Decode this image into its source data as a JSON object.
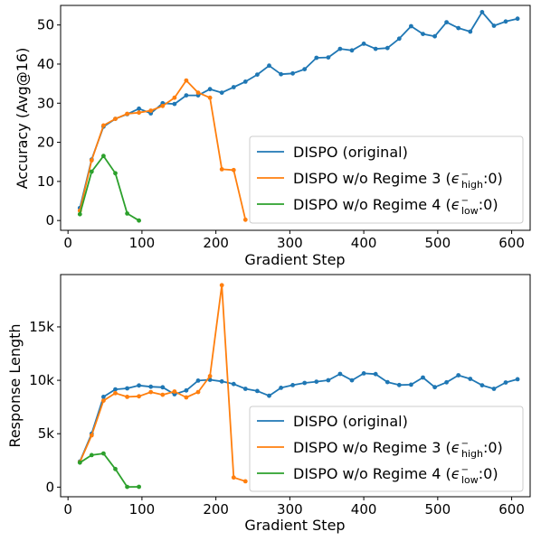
{
  "chart_data": [
    {
      "type": "line",
      "title": "",
      "xlabel": "Gradient Step",
      "ylabel": "Accuracy (Avg@16)",
      "xlim": [
        -10,
        625
      ],
      "ylim": [
        -2.5,
        55
      ],
      "xticks": [
        0,
        100,
        200,
        300,
        400,
        500,
        600
      ],
      "yticks": [
        0,
        10,
        20,
        30,
        40,
        50
      ],
      "xtick_labels": [
        "0",
        "100",
        "200",
        "300",
        "400",
        "500",
        "600"
      ],
      "ytick_labels": [
        "0",
        "10",
        "20",
        "30",
        "40",
        "50"
      ],
      "legend_placement": "lower-right",
      "series": [
        {
          "name": "DISPO (original)",
          "color": "#1f77b4",
          "x": [
            16,
            32,
            48,
            64,
            80,
            96,
            112,
            128,
            144,
            160,
            176,
            192,
            208,
            224,
            240,
            256,
            272,
            288,
            304,
            320,
            336,
            352,
            368,
            384,
            400,
            416,
            432,
            448,
            464,
            480,
            496,
            512,
            528,
            544,
            560,
            576,
            592,
            608
          ],
          "y": [
            3.2,
            15.6,
            24.0,
            26.0,
            27.2,
            28.6,
            27.4,
            30.0,
            29.8,
            32.0,
            32.0,
            33.6,
            32.7,
            34.1,
            35.5,
            37.3,
            39.6,
            37.4,
            37.6,
            38.7,
            41.6,
            41.7,
            43.9,
            43.5,
            45.2,
            43.9,
            44.1,
            46.5,
            49.7,
            47.7,
            47.1,
            50.7,
            49.2,
            48.3,
            53.3,
            49.8,
            50.9,
            51.6
          ]
        },
        {
          "name_prefix": "DISPO w/o Regime 3 (",
          "name_suffix": ":0)",
          "symbol_sub": "high",
          "color": "#ff7f0e",
          "x": [
            16,
            32,
            48,
            64,
            80,
            96,
            112,
            128,
            144,
            160,
            176,
            192,
            208,
            224,
            240
          ],
          "y": [
            2.5,
            15.4,
            24.3,
            26.0,
            27.3,
            27.6,
            28.1,
            29.3,
            31.4,
            35.8,
            32.7,
            31.4,
            13.1,
            12.9,
            0.2
          ]
        },
        {
          "name_prefix": "DISPO w/o Regime 4 (",
          "name_suffix": ":0)",
          "symbol_sub": "low",
          "color": "#2ca02c",
          "x": [
            16,
            32,
            48,
            64,
            80,
            96
          ],
          "y": [
            1.6,
            12.5,
            16.5,
            12.1,
            1.8,
            0.0
          ]
        }
      ]
    },
    {
      "type": "line",
      "title": "",
      "xlabel": "Gradient Step",
      "ylabel": "Response Length",
      "xlim": [
        -10,
        625
      ],
      "ylim": [
        -900,
        19900
      ],
      "xticks": [
        0,
        100,
        200,
        300,
        400,
        500,
        600
      ],
      "yticks": [
        0,
        5000,
        10000,
        15000
      ],
      "xtick_labels": [
        "0",
        "100",
        "200",
        "300",
        "400",
        "500",
        "600"
      ],
      "ytick_labels": [
        "0",
        "5k",
        "10k",
        "15k"
      ],
      "legend_placement": "lower-right",
      "series": [
        {
          "name": "DISPO (original)",
          "color": "#1f77b4",
          "x": [
            16,
            32,
            48,
            64,
            80,
            96,
            112,
            128,
            144,
            160,
            176,
            192,
            208,
            224,
            240,
            256,
            272,
            288,
            304,
            320,
            336,
            352,
            368,
            384,
            400,
            416,
            432,
            448,
            464,
            480,
            496,
            512,
            528,
            544,
            560,
            576,
            592,
            608
          ],
          "y": [
            2400,
            5000,
            8450,
            9150,
            9250,
            9520,
            9400,
            9350,
            8700,
            9050,
            9970,
            10050,
            9900,
            9650,
            9200,
            9000,
            8550,
            9300,
            9550,
            9750,
            9870,
            10010,
            10600,
            10000,
            10650,
            10580,
            9830,
            9560,
            9590,
            10260,
            9360,
            9810,
            10470,
            10130,
            9530,
            9200,
            9800,
            10100
          ]
        },
        {
          "name_prefix": "DISPO w/o Regime 3 (",
          "name_suffix": ":0)",
          "symbol_sub": "high",
          "color": "#ff7f0e",
          "x": [
            16,
            32,
            48,
            64,
            80,
            96,
            112,
            128,
            144,
            160,
            176,
            192,
            208,
            224,
            240
          ],
          "y": [
            2350,
            4850,
            8100,
            8800,
            8450,
            8500,
            8900,
            8650,
            8950,
            8400,
            8900,
            10400,
            18900,
            900,
            550
          ]
        },
        {
          "name_prefix": "DISPO w/o Regime 4 (",
          "name_suffix": ":0)",
          "symbol_sub": "low",
          "color": "#2ca02c",
          "x": [
            16,
            32,
            48,
            64,
            80,
            96
          ],
          "y": [
            2300,
            3000,
            3150,
            1700,
            20,
            30
          ]
        }
      ]
    }
  ],
  "legend_symbol": "ϵ",
  "legend_symbol_sup": "−"
}
